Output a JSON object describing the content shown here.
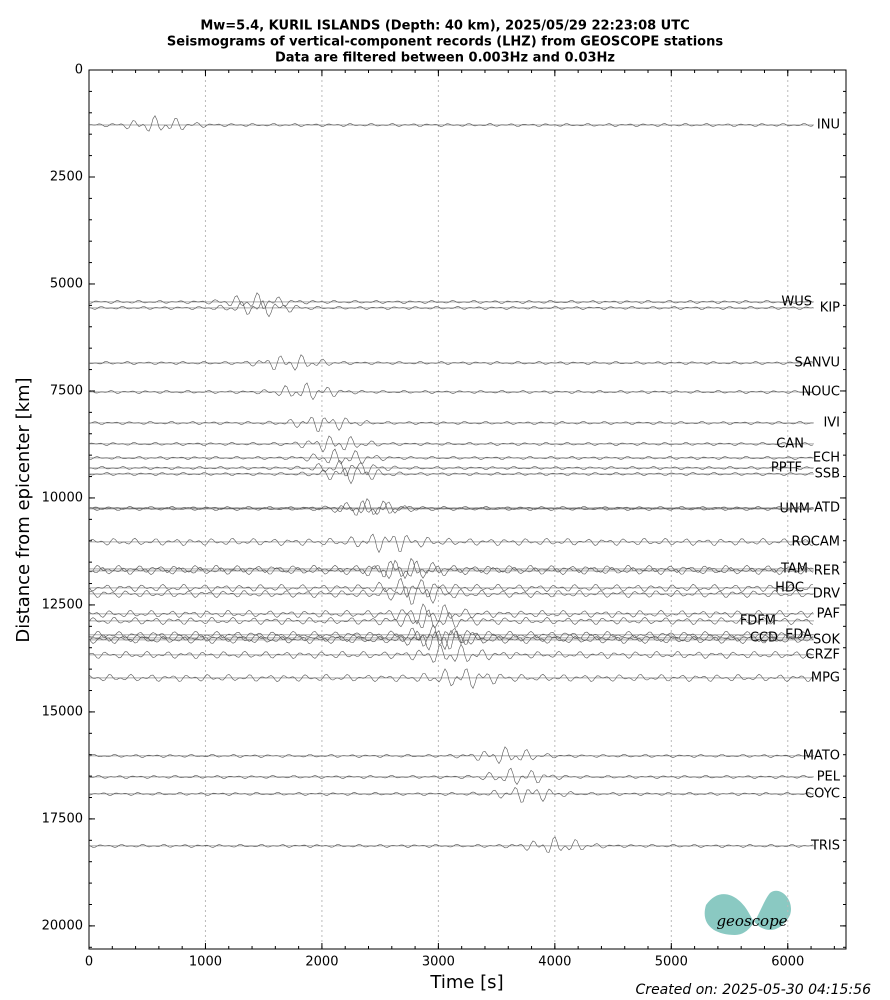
{
  "chart_data": {
    "type": "seismogram",
    "title": [
      "Mw=5.4, KURIL ISLANDS (Depth: 40 km), 2025/05/29 22:23:08 UTC",
      "Seismograms of vertical-component records (LHZ) from GEOSCOPE stations",
      "Data are filtered between 0.003Hz and 0.03Hz"
    ],
    "x_label": "Time [s]",
    "y_label": "Distance from epicenter [km]",
    "xlim": [
      0,
      6500
    ],
    "xticks": [
      0,
      1000,
      2000,
      3000,
      4000,
      5000,
      6000
    ],
    "ylim": [
      0,
      20540
    ],
    "yticks": [
      0,
      2500,
      5000,
      7500,
      10000,
      12500,
      15000,
      17500,
      20000
    ],
    "y_inverted": true,
    "grid": true,
    "color": "#555555",
    "stations": [
      "INU",
      "WUS",
      "KIP",
      "SANVU",
      "NOUC",
      "IVI",
      "CAN",
      "ECH",
      "PPTF",
      "SSB",
      "UNM",
      "ATD",
      "ROCAM",
      "TAM",
      "RER",
      "HDC",
      "DRV",
      "PAF",
      "FDFM",
      "EDA",
      "CCD",
      "SOK",
      "CRZF",
      "MPG",
      "MATO",
      "PEL",
      "COYC",
      "TRIS"
    ],
    "distances": [
      1285,
      5420,
      5560,
      6846,
      7523,
      8248,
      8738,
      9065,
      9300,
      9440,
      10257,
      10234,
      11028,
      11659,
      11706,
      12103,
      12243,
      12710,
      12874,
      13200,
      13271,
      13318,
      13668,
      14206,
      16028,
      16519,
      16916,
      18131
    ],
    "created": "Created on: 2025-05-30 04:15:56",
    "logo": "geoscope"
  }
}
